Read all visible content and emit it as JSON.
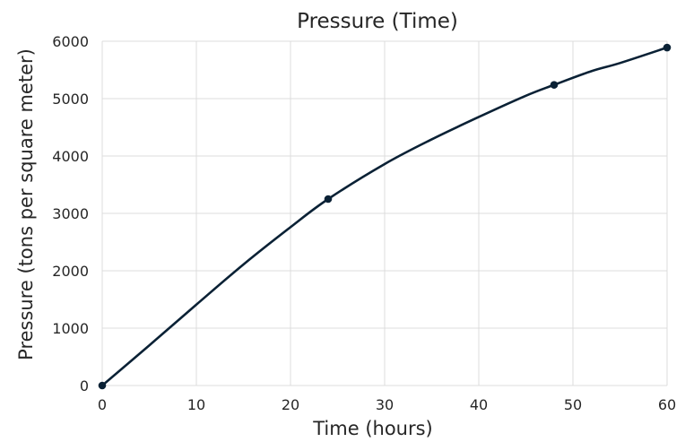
{
  "chart_data": {
    "type": "line",
    "title": "Pressure (Time)",
    "xlabel": "Time (hours)",
    "ylabel": "Pressure (tons per square meter)",
    "xlim": [
      0,
      60
    ],
    "ylim": [
      0,
      6000
    ],
    "x_ticks": [
      0,
      10,
      20,
      30,
      40,
      50,
      60
    ],
    "y_ticks": [
      0,
      1000,
      2000,
      3000,
      4000,
      5000,
      6000
    ],
    "grid": true,
    "series": [
      {
        "markers": {
          "x": [
            0,
            24,
            48,
            60
          ],
          "y": [
            0,
            3250,
            5240,
            5890
          ]
        },
        "curve": {
          "x": [
            0,
            5,
            10,
            15,
            20,
            24,
            30,
            35,
            40,
            45,
            48,
            52,
            55,
            60
          ],
          "y": [
            0,
            700,
            1410,
            2110,
            2760,
            3250,
            3860,
            4290,
            4680,
            5050,
            5240,
            5480,
            5620,
            5890
          ]
        },
        "color": "#0a2135"
      }
    ]
  }
}
